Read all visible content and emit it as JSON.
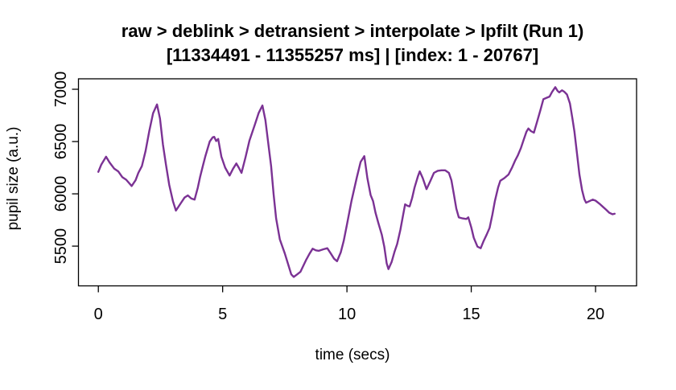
{
  "chart_data": {
    "type": "line",
    "title": "raw > deblink > detransient > interpolate > lpfilt (Run 1)",
    "subtitle": "[11334491 - 11355257 ms] | [index: 1 - 20767]",
    "xlabel": "time (secs)",
    "ylabel": "pupil size (a.u.)",
    "x_ticks": [
      0,
      5,
      10,
      15,
      20
    ],
    "y_ticks": [
      5500,
      6000,
      6500,
      7000
    ],
    "xlim": [
      -0.8,
      21.65
    ],
    "ylim": [
      5120,
      7100
    ],
    "grid": false,
    "legend": null,
    "background": "#ffffff",
    "line_color": "#7b3294",
    "box_color": "#000000",
    "series": [
      {
        "name": "pupil size (a.u.)",
        "points": [
          [
            0.0,
            6210
          ],
          [
            0.12,
            6280
          ],
          [
            0.31,
            6355
          ],
          [
            0.45,
            6300
          ],
          [
            0.64,
            6240
          ],
          [
            0.8,
            6215
          ],
          [
            0.96,
            6160
          ],
          [
            1.12,
            6135
          ],
          [
            1.34,
            6075
          ],
          [
            1.5,
            6130
          ],
          [
            1.61,
            6200
          ],
          [
            1.75,
            6265
          ],
          [
            1.9,
            6410
          ],
          [
            2.05,
            6600
          ],
          [
            2.2,
            6770
          ],
          [
            2.36,
            6855
          ],
          [
            2.48,
            6720
          ],
          [
            2.6,
            6470
          ],
          [
            2.72,
            6280
          ],
          [
            2.85,
            6085
          ],
          [
            3.0,
            5930
          ],
          [
            3.12,
            5840
          ],
          [
            3.3,
            5905
          ],
          [
            3.47,
            5965
          ],
          [
            3.6,
            5985
          ],
          [
            3.74,
            5955
          ],
          [
            3.87,
            5945
          ],
          [
            4.0,
            6060
          ],
          [
            4.09,
            6160
          ],
          [
            4.2,
            6265
          ],
          [
            4.3,
            6355
          ],
          [
            4.48,
            6500
          ],
          [
            4.6,
            6540
          ],
          [
            4.66,
            6545
          ],
          [
            4.74,
            6505
          ],
          [
            4.82,
            6525
          ],
          [
            4.95,
            6355
          ],
          [
            5.1,
            6250
          ],
          [
            5.28,
            6175
          ],
          [
            5.42,
            6240
          ],
          [
            5.55,
            6290
          ],
          [
            5.65,
            6250
          ],
          [
            5.76,
            6200
          ],
          [
            5.92,
            6350
          ],
          [
            6.08,
            6510
          ],
          [
            6.3,
            6665
          ],
          [
            6.45,
            6775
          ],
          [
            6.6,
            6845
          ],
          [
            6.72,
            6705
          ],
          [
            6.85,
            6455
          ],
          [
            6.95,
            6265
          ],
          [
            7.05,
            5995
          ],
          [
            7.15,
            5765
          ],
          [
            7.3,
            5565
          ],
          [
            7.5,
            5430
          ],
          [
            7.65,
            5315
          ],
          [
            7.76,
            5230
          ],
          [
            7.86,
            5205
          ],
          [
            8.0,
            5230
          ],
          [
            8.13,
            5255
          ],
          [
            8.35,
            5365
          ],
          [
            8.5,
            5430
          ],
          [
            8.62,
            5475
          ],
          [
            8.75,
            5460
          ],
          [
            8.87,
            5455
          ],
          [
            9.05,
            5470
          ],
          [
            9.21,
            5480
          ],
          [
            9.35,
            5430
          ],
          [
            9.48,
            5380
          ],
          [
            9.6,
            5355
          ],
          [
            9.75,
            5440
          ],
          [
            9.87,
            5550
          ],
          [
            10.0,
            5705
          ],
          [
            10.18,
            5930
          ],
          [
            10.4,
            6160
          ],
          [
            10.55,
            6305
          ],
          [
            10.7,
            6360
          ],
          [
            10.82,
            6150
          ],
          [
            10.95,
            5990
          ],
          [
            11.05,
            5930
          ],
          [
            11.15,
            5820
          ],
          [
            11.26,
            5725
          ],
          [
            11.4,
            5610
          ],
          [
            11.5,
            5495
          ],
          [
            11.6,
            5335
          ],
          [
            11.67,
            5280
          ],
          [
            11.8,
            5350
          ],
          [
            11.92,
            5450
          ],
          [
            12.02,
            5520
          ],
          [
            12.15,
            5655
          ],
          [
            12.25,
            5785
          ],
          [
            12.34,
            5900
          ],
          [
            12.44,
            5885
          ],
          [
            12.52,
            5880
          ],
          [
            12.62,
            5960
          ],
          [
            12.72,
            6060
          ],
          [
            12.85,
            6165
          ],
          [
            12.93,
            6215
          ],
          [
            13.05,
            6150
          ],
          [
            13.2,
            6045
          ],
          [
            13.35,
            6120
          ],
          [
            13.5,
            6200
          ],
          [
            13.65,
            6220
          ],
          [
            13.8,
            6225
          ],
          [
            13.95,
            6225
          ],
          [
            14.1,
            6200
          ],
          [
            14.2,
            6130
          ],
          [
            14.3,
            5995
          ],
          [
            14.4,
            5860
          ],
          [
            14.5,
            5775
          ],
          [
            14.65,
            5765
          ],
          [
            14.8,
            5760
          ],
          [
            14.88,
            5775
          ],
          [
            15.0,
            5680
          ],
          [
            15.1,
            5580
          ],
          [
            15.25,
            5495
          ],
          [
            15.38,
            5480
          ],
          [
            15.5,
            5550
          ],
          [
            15.62,
            5610
          ],
          [
            15.74,
            5675
          ],
          [
            15.85,
            5800
          ],
          [
            15.95,
            5930
          ],
          [
            16.08,
            6060
          ],
          [
            16.17,
            6125
          ],
          [
            16.33,
            6150
          ],
          [
            16.5,
            6185
          ],
          [
            16.65,
            6255
          ],
          [
            16.76,
            6315
          ],
          [
            16.87,
            6365
          ],
          [
            17.0,
            6440
          ],
          [
            17.1,
            6510
          ],
          [
            17.22,
            6595
          ],
          [
            17.3,
            6625
          ],
          [
            17.4,
            6600
          ],
          [
            17.52,
            6585
          ],
          [
            17.65,
            6690
          ],
          [
            17.78,
            6800
          ],
          [
            17.9,
            6905
          ],
          [
            18.05,
            6920
          ],
          [
            18.15,
            6930
          ],
          [
            18.25,
            6975
          ],
          [
            18.38,
            7020
          ],
          [
            18.47,
            6985
          ],
          [
            18.54,
            6970
          ],
          [
            18.65,
            6990
          ],
          [
            18.75,
            6975
          ],
          [
            18.85,
            6950
          ],
          [
            18.97,
            6865
          ],
          [
            19.07,
            6720
          ],
          [
            19.15,
            6595
          ],
          [
            19.25,
            6390
          ],
          [
            19.35,
            6185
          ],
          [
            19.46,
            6035
          ],
          [
            19.55,
            5950
          ],
          [
            19.62,
            5915
          ],
          [
            19.75,
            5930
          ],
          [
            19.89,
            5945
          ],
          [
            20.0,
            5935
          ],
          [
            20.16,
            5905
          ],
          [
            20.3,
            5875
          ],
          [
            20.42,
            5850
          ],
          [
            20.55,
            5820
          ],
          [
            20.68,
            5805
          ],
          [
            20.77,
            5810
          ]
        ]
      }
    ]
  }
}
